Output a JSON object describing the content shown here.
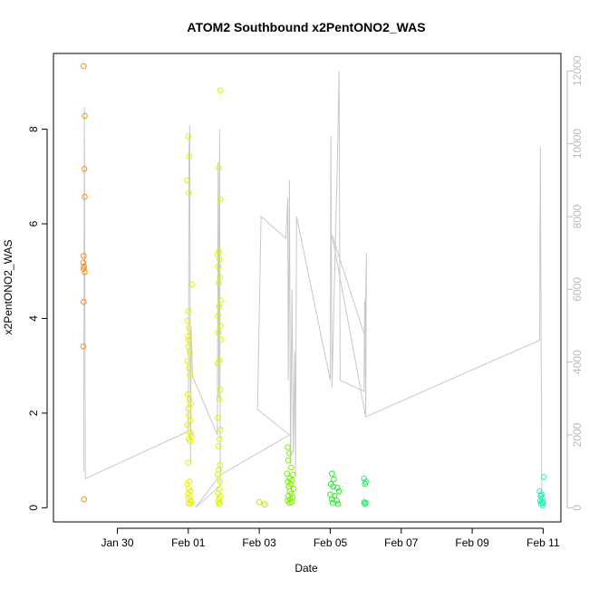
{
  "chart_data": {
    "type": "scatter",
    "title": "ATOM2 Southbound x2PentONO2_WAS",
    "xlabel": "Date",
    "ylabel": "x2PentONO2_WAS",
    "x_ticks": [
      "Jan 30",
      "Feb 01",
      "Feb 03",
      "Feb 05",
      "Feb 07",
      "Feb 09",
      "Feb 11"
    ],
    "x_tick_days": [
      30,
      32,
      34,
      36,
      38,
      40,
      42
    ],
    "xlim_days": [
      28.2,
      42.5
    ],
    "ylim": [
      -0.3,
      9.6
    ],
    "y_ticks": [
      0,
      2,
      4,
      6,
      8
    ],
    "y2_ticks": [
      0,
      2000,
      4000,
      6000,
      8000,
      10000,
      12000
    ],
    "y2lim": [
      -390,
      12480
    ],
    "y2_axis_color": "#bbbbbb",
    "grid": false,
    "series": [
      {
        "color": "#ff8c1a",
        "points": [
          [
            29.05,
            9.33
          ],
          [
            29.08,
            8.28
          ],
          [
            29.07,
            7.16
          ],
          [
            29.08,
            6.57
          ],
          [
            29.05,
            5.32
          ],
          [
            29.04,
            5.18
          ],
          [
            29.06,
            5.1
          ],
          [
            29.05,
            5.05
          ],
          [
            29.08,
            4.98
          ],
          [
            29.05,
            4.35
          ],
          [
            29.04,
            3.41
          ],
          [
            29.06,
            0.18
          ]
        ]
      },
      {
        "color": "#e6f000",
        "points": [
          [
            32.0,
            7.85
          ],
          [
            31.97,
            6.92
          ],
          [
            32.01,
            6.65
          ],
          [
            32.03,
            7.42
          ],
          [
            32.1,
            4.72
          ],
          [
            32.0,
            4.15
          ],
          [
            31.98,
            3.95
          ],
          [
            32.02,
            3.8
          ],
          [
            31.99,
            3.62
          ],
          [
            32.01,
            3.55
          ],
          [
            32.0,
            3.4
          ],
          [
            32.04,
            3.3
          ],
          [
            31.98,
            3.1
          ],
          [
            32.02,
            2.95
          ],
          [
            32.05,
            2.8
          ],
          [
            31.99,
            2.4
          ],
          [
            32.03,
            2.3
          ],
          [
            32.07,
            2.2
          ],
          [
            32.0,
            2.1
          ],
          [
            32.02,
            1.95
          ],
          [
            32.06,
            1.85
          ],
          [
            31.98,
            1.75
          ],
          [
            32.04,
            1.6
          ],
          [
            32.08,
            1.55
          ],
          [
            32.01,
            1.45
          ],
          [
            32.05,
            1.4
          ],
          [
            32.09,
            1.5
          ],
          [
            32.0,
            0.95
          ],
          [
            32.03,
            0.55
          ],
          [
            31.97,
            0.5
          ],
          [
            32.02,
            0.4
          ],
          [
            32.06,
            0.35
          ],
          [
            31.99,
            0.3
          ],
          [
            32.04,
            0.25
          ],
          [
            32.0,
            0.2
          ],
          [
            32.07,
            0.15
          ],
          [
            32.01,
            0.1
          ],
          [
            32.05,
            0.08
          ],
          [
            32.09,
            0.12
          ]
        ]
      },
      {
        "color": "#d8f500",
        "points": [
          [
            32.9,
            8.82
          ],
          [
            32.86,
            7.18
          ],
          [
            32.9,
            6.52
          ],
          [
            32.86,
            5.42
          ],
          [
            32.82,
            5.35
          ],
          [
            32.88,
            5.25
          ],
          [
            32.85,
            5.1
          ],
          [
            32.89,
            4.88
          ],
          [
            32.86,
            4.75
          ],
          [
            32.91,
            4.38
          ],
          [
            32.87,
            4.25
          ],
          [
            32.84,
            4.05
          ],
          [
            32.9,
            3.85
          ],
          [
            32.85,
            3.7
          ],
          [
            32.92,
            3.55
          ],
          [
            32.88,
            3.12
          ],
          [
            32.83,
            3.05
          ],
          [
            32.9,
            2.5
          ],
          [
            32.87,
            2.3
          ],
          [
            32.84,
            1.9
          ],
          [
            32.91,
            1.65
          ],
          [
            32.88,
            1.45
          ],
          [
            32.85,
            1.3
          ],
          [
            32.89,
            0.9
          ],
          [
            32.86,
            0.8
          ],
          [
            32.83,
            0.7
          ],
          [
            32.9,
            0.55
          ],
          [
            32.87,
            0.4
          ],
          [
            32.84,
            0.3
          ],
          [
            32.91,
            0.25
          ],
          [
            32.88,
            0.2
          ],
          [
            32.85,
            0.15
          ],
          [
            32.89,
            0.1
          ],
          [
            32.86,
            0.08
          ]
        ]
      },
      {
        "color": "#b0f000",
        "points": [
          [
            34.0,
            0.12
          ],
          [
            34.15,
            0.07
          ]
        ]
      },
      {
        "color": "#7ef000",
        "points": [
          [
            34.8,
            1.28
          ],
          [
            34.85,
            1.15
          ],
          [
            34.82,
            1.0
          ],
          [
            34.9,
            0.85
          ],
          [
            34.78,
            0.72
          ],
          [
            34.95,
            0.7
          ],
          [
            34.85,
            0.62
          ],
          [
            34.8,
            0.55
          ],
          [
            34.92,
            0.58
          ],
          [
            34.88,
            0.5
          ],
          [
            34.83,
            0.45
          ],
          [
            34.97,
            0.4
          ],
          [
            34.86,
            0.35
          ],
          [
            34.9,
            0.3
          ],
          [
            34.82,
            0.25
          ],
          [
            34.94,
            0.22
          ],
          [
            34.87,
            0.18
          ],
          [
            34.8,
            0.15
          ],
          [
            34.91,
            0.12
          ],
          [
            34.85,
            0.1
          ]
        ]
      },
      {
        "color": "#22ee22",
        "points": [
          [
            36.05,
            0.72
          ],
          [
            36.1,
            0.6
          ],
          [
            36.02,
            0.5
          ],
          [
            36.08,
            0.45
          ],
          [
            36.2,
            0.42
          ],
          [
            36.25,
            0.35
          ],
          [
            36.0,
            0.28
          ],
          [
            36.12,
            0.25
          ],
          [
            36.05,
            0.18
          ],
          [
            36.18,
            0.15
          ],
          [
            36.07,
            0.1
          ],
          [
            36.22,
            0.08
          ]
        ]
      },
      {
        "color": "#22ee66",
        "points": [
          [
            36.95,
            0.62
          ],
          [
            37.0,
            0.55
          ],
          [
            36.98,
            0.5
          ],
          [
            36.96,
            0.12
          ],
          [
            37.0,
            0.1
          ],
          [
            36.97,
            0.08
          ]
        ]
      },
      {
        "color": "#22f0b0",
        "points": [
          [
            41.9,
            0.35
          ],
          [
            41.95,
            0.28
          ],
          [
            42.02,
            0.65
          ],
          [
            41.93,
            0.25
          ],
          [
            41.98,
            0.2
          ],
          [
            41.92,
            0.15
          ],
          [
            41.97,
            0.12
          ],
          [
            42.0,
            0.1
          ],
          [
            41.94,
            0.08
          ],
          [
            41.99,
            0.05
          ]
        ]
      }
    ],
    "secondary_line": {
      "color": "#c8c8c8",
      "y_axis": "right",
      "points": [
        [
          29.05,
          1000
        ],
        [
          29.07,
          11000
        ],
        [
          29.1,
          800
        ],
        [
          32.0,
          2100
        ],
        [
          32.02,
          9800
        ],
        [
          32.04,
          10500
        ],
        [
          32.06,
          1200
        ],
        [
          32.08,
          4900
        ],
        [
          32.12,
          3600
        ],
        [
          32.3,
          3200
        ],
        [
          32.6,
          2500
        ],
        [
          32.82,
          2000
        ],
        [
          32.84,
          9500
        ],
        [
          32.86,
          3000
        ],
        [
          32.88,
          10400
        ],
        [
          32.9,
          600
        ],
        [
          32.2,
          0
        ],
        [
          32.9,
          900
        ],
        [
          34.85,
          2000
        ],
        [
          33.95,
          2700
        ],
        [
          34.05,
          8000
        ],
        [
          34.75,
          7400
        ],
        [
          34.8,
          8500
        ],
        [
          34.82,
          3500
        ],
        [
          34.85,
          9000
        ],
        [
          34.88,
          1200
        ],
        [
          34.92,
          6000
        ],
        [
          34.96,
          1500
        ],
        [
          35.0,
          4300
        ],
        [
          35.02,
          900
        ],
        [
          35.05,
          8000
        ],
        [
          36.0,
          3500
        ],
        [
          36.02,
          10200
        ],
        [
          36.05,
          3300
        ],
        [
          36.2,
          9500
        ],
        [
          36.25,
          12000
        ],
        [
          36.28,
          3500
        ],
        [
          36.95,
          3200
        ],
        [
          36.97,
          5700
        ],
        [
          37.0,
          2500
        ],
        [
          37.02,
          7000
        ],
        [
          36.98,
          4700
        ],
        [
          36.05,
          7500
        ],
        [
          37.0,
          2500
        ],
        [
          41.9,
          4600
        ],
        [
          41.92,
          9900
        ],
        [
          41.96,
          200
        ]
      ]
    }
  }
}
